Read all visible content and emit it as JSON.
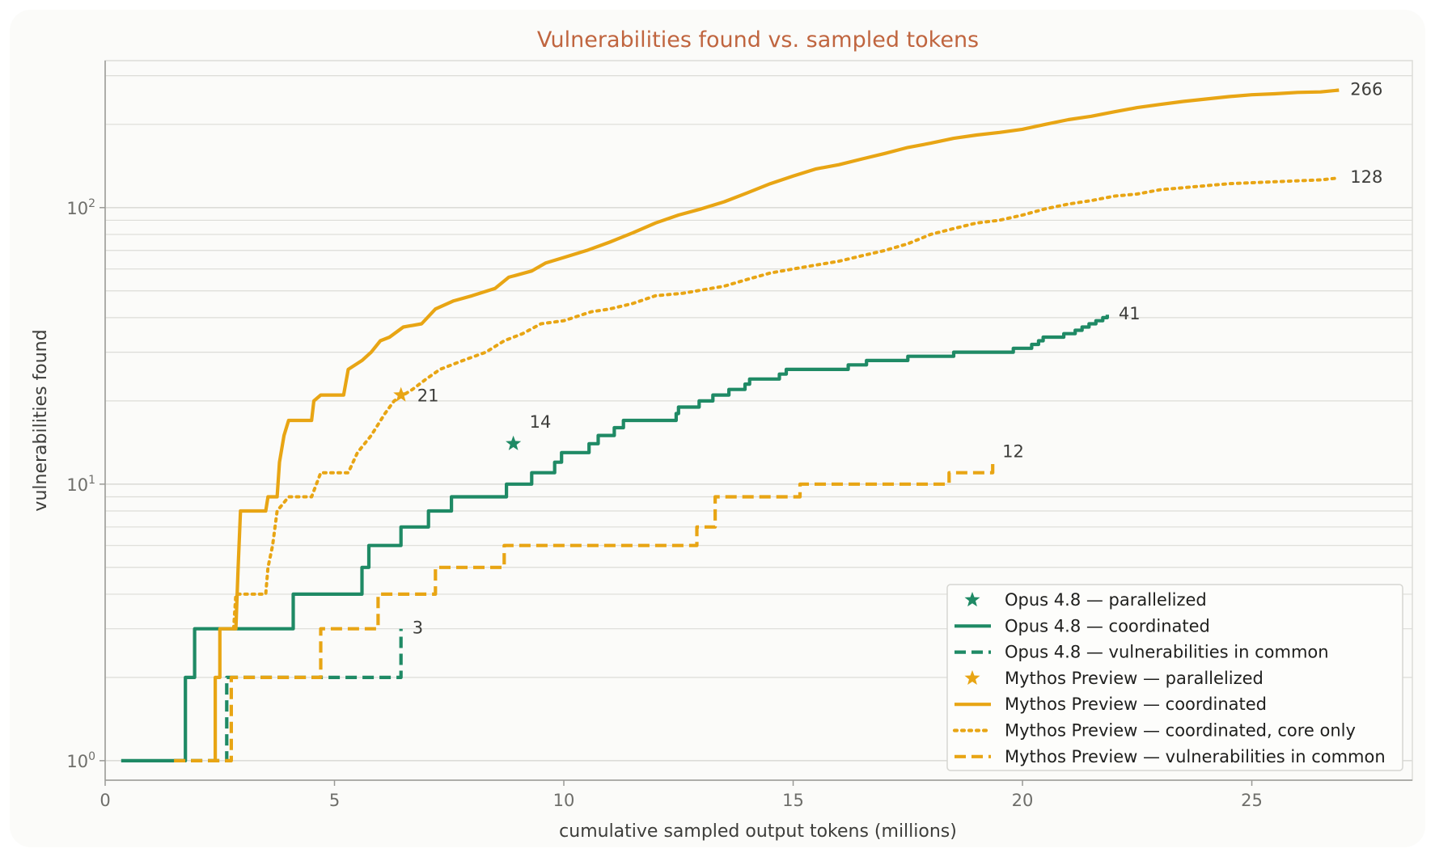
{
  "colors": {
    "opus": "#1f8a65",
    "mythos": "#e8a514",
    "title": "#c0653f",
    "grid": "#dcdcd8",
    "axis": "#9a9a96",
    "background": "#fbfbf9"
  },
  "chart_data": {
    "type": "line",
    "title": "Vulnerabilities found vs. sampled tokens",
    "xlabel": "cumulative sampled output tokens (millions)",
    "ylabel": "vulnerabilities found",
    "xlim": [
      0,
      28.5
    ],
    "ylim": [
      0.85,
      340
    ],
    "yscale": "log",
    "grid": true,
    "legend_position": "bottom-right",
    "x_ticks": [
      {
        "value": 0,
        "label": "0"
      },
      {
        "value": 5,
        "label": "5"
      },
      {
        "value": 10,
        "label": "10"
      },
      {
        "value": 15,
        "label": "15"
      },
      {
        "value": 20,
        "label": "20"
      },
      {
        "value": 25,
        "label": "25"
      }
    ],
    "y_ticks": [
      {
        "value": 1,
        "base": "10",
        "exp": "0"
      },
      {
        "value": 10,
        "base": "10",
        "exp": "1"
      },
      {
        "value": 100,
        "base": "10",
        "exp": "2"
      }
    ],
    "series": [
      {
        "name": "Opus 4.8 — parallelized",
        "color": "opus",
        "style": "star",
        "points": [
          [
            8.9,
            14
          ]
        ],
        "end_label": "14"
      },
      {
        "name": "Opus 4.8 — coordinated",
        "color": "opus",
        "style": "solid",
        "points": [
          [
            0.35,
            1
          ],
          [
            1.75,
            1
          ],
          [
            1.75,
            2
          ],
          [
            1.95,
            2
          ],
          [
            1.95,
            3
          ],
          [
            4.1,
            3
          ],
          [
            4.1,
            4
          ],
          [
            5.6,
            4
          ],
          [
            5.6,
            5
          ],
          [
            5.75,
            5
          ],
          [
            5.75,
            6
          ],
          [
            6.45,
            6
          ],
          [
            6.45,
            7
          ],
          [
            7.05,
            7
          ],
          [
            7.05,
            8
          ],
          [
            7.55,
            8
          ],
          [
            7.55,
            9
          ],
          [
            8.75,
            9
          ],
          [
            8.75,
            10
          ],
          [
            9.3,
            10
          ],
          [
            9.3,
            11
          ],
          [
            9.8,
            11
          ],
          [
            9.8,
            12
          ],
          [
            9.95,
            12
          ],
          [
            9.95,
            13
          ],
          [
            10.55,
            13
          ],
          [
            10.55,
            14
          ],
          [
            10.75,
            14
          ],
          [
            10.75,
            15
          ],
          [
            11.1,
            15
          ],
          [
            11.1,
            16
          ],
          [
            11.3,
            16
          ],
          [
            11.3,
            17
          ],
          [
            12.45,
            17
          ],
          [
            12.45,
            18
          ],
          [
            12.5,
            18
          ],
          [
            12.5,
            19
          ],
          [
            12.95,
            19
          ],
          [
            12.95,
            20
          ],
          [
            13.25,
            20
          ],
          [
            13.25,
            21
          ],
          [
            13.6,
            21
          ],
          [
            13.6,
            22
          ],
          [
            13.95,
            22
          ],
          [
            13.95,
            23
          ],
          [
            14.05,
            23
          ],
          [
            14.05,
            24
          ],
          [
            14.7,
            24
          ],
          [
            14.7,
            25
          ],
          [
            14.85,
            25
          ],
          [
            14.85,
            26
          ],
          [
            16.2,
            26
          ],
          [
            16.2,
            27
          ],
          [
            16.6,
            27
          ],
          [
            16.6,
            28
          ],
          [
            17.5,
            28
          ],
          [
            17.5,
            29
          ],
          [
            18.5,
            29
          ],
          [
            18.5,
            30
          ],
          [
            19.8,
            30
          ],
          [
            19.8,
            31
          ],
          [
            20.2,
            31
          ],
          [
            20.2,
            32
          ],
          [
            20.35,
            32
          ],
          [
            20.35,
            33
          ],
          [
            20.45,
            33
          ],
          [
            20.45,
            34
          ],
          [
            20.9,
            34
          ],
          [
            20.9,
            35
          ],
          [
            21.15,
            35
          ],
          [
            21.15,
            36
          ],
          [
            21.3,
            36
          ],
          [
            21.3,
            37
          ],
          [
            21.45,
            37
          ],
          [
            21.45,
            38
          ],
          [
            21.6,
            38
          ],
          [
            21.6,
            39
          ],
          [
            21.75,
            39
          ],
          [
            21.75,
            40
          ],
          [
            21.85,
            40
          ],
          [
            21.85,
            41
          ]
        ],
        "end_label": "41"
      },
      {
        "name": "Opus 4.8 — vulnerabilities in common",
        "color": "opus",
        "style": "dashed",
        "points": [
          [
            1.5,
            1
          ],
          [
            1.5,
            1
          ],
          [
            2.65,
            1
          ],
          [
            2.65,
            2
          ],
          [
            6.45,
            2
          ],
          [
            6.45,
            3
          ]
        ],
        "end_label": "3"
      },
      {
        "name": "Mythos Preview — parallelized",
        "color": "mythos",
        "style": "star",
        "points": [
          [
            6.45,
            21
          ]
        ],
        "end_label": "21"
      },
      {
        "name": "Mythos Preview — coordinated",
        "color": "mythos",
        "style": "solid",
        "points": [
          [
            2.4,
            1
          ],
          [
            2.4,
            2
          ],
          [
            2.5,
            2
          ],
          [
            2.5,
            3
          ],
          [
            2.85,
            3
          ],
          [
            2.9,
            5
          ],
          [
            2.95,
            8
          ],
          [
            3.5,
            8
          ],
          [
            3.55,
            9
          ],
          [
            3.75,
            9
          ],
          [
            3.8,
            12
          ],
          [
            3.9,
            15
          ],
          [
            4.0,
            17
          ],
          [
            4.5,
            17
          ],
          [
            4.55,
            20
          ],
          [
            4.7,
            21
          ],
          [
            5.2,
            21
          ],
          [
            5.3,
            26
          ],
          [
            5.6,
            28
          ],
          [
            5.8,
            30
          ],
          [
            6.0,
            33
          ],
          [
            6.2,
            34
          ],
          [
            6.5,
            37
          ],
          [
            6.9,
            38
          ],
          [
            7.2,
            43
          ],
          [
            7.6,
            46
          ],
          [
            8.0,
            48
          ],
          [
            8.5,
            51
          ],
          [
            8.8,
            56
          ],
          [
            9.3,
            59
          ],
          [
            9.6,
            63
          ],
          [
            10.0,
            66
          ],
          [
            10.5,
            70
          ],
          [
            11.0,
            75
          ],
          [
            11.5,
            81
          ],
          [
            12.0,
            88
          ],
          [
            12.5,
            94
          ],
          [
            13.0,
            99
          ],
          [
            13.5,
            105
          ],
          [
            14.0,
            113
          ],
          [
            14.5,
            122
          ],
          [
            15.0,
            130
          ],
          [
            15.5,
            138
          ],
          [
            16.0,
            143
          ],
          [
            16.5,
            150
          ],
          [
            17.0,
            157
          ],
          [
            17.5,
            165
          ],
          [
            18.0,
            171
          ],
          [
            18.5,
            178
          ],
          [
            19.0,
            183
          ],
          [
            19.5,
            187
          ],
          [
            20.0,
            192
          ],
          [
            20.5,
            200
          ],
          [
            21.0,
            208
          ],
          [
            21.5,
            214
          ],
          [
            22.0,
            222
          ],
          [
            22.5,
            230
          ],
          [
            23.0,
            236
          ],
          [
            23.5,
            242
          ],
          [
            24.0,
            247
          ],
          [
            24.5,
            252
          ],
          [
            25.0,
            256
          ],
          [
            25.5,
            258
          ],
          [
            26.0,
            261
          ],
          [
            26.5,
            262
          ],
          [
            26.9,
            266
          ]
        ],
        "end_label": "266"
      },
      {
        "name": "Mythos Preview — coordinated, core only",
        "color": "mythos",
        "style": "dotted",
        "points": [
          [
            2.8,
            3
          ],
          [
            2.85,
            4
          ],
          [
            3.5,
            4
          ],
          [
            3.55,
            5
          ],
          [
            3.65,
            6
          ],
          [
            3.75,
            8
          ],
          [
            4.0,
            9
          ],
          [
            4.5,
            9
          ],
          [
            4.7,
            11
          ],
          [
            5.3,
            11
          ],
          [
            5.5,
            13
          ],
          [
            5.8,
            15
          ],
          [
            6.1,
            18
          ],
          [
            6.3,
            20
          ],
          [
            6.5,
            21
          ],
          [
            6.7,
            22
          ],
          [
            7.0,
            24
          ],
          [
            7.3,
            26
          ],
          [
            7.8,
            28
          ],
          [
            8.3,
            30
          ],
          [
            8.7,
            33
          ],
          [
            9.1,
            35
          ],
          [
            9.5,
            38
          ],
          [
            10.0,
            39
          ],
          [
            10.6,
            42
          ],
          [
            11.0,
            43
          ],
          [
            11.5,
            45
          ],
          [
            12.0,
            48
          ],
          [
            12.6,
            49
          ],
          [
            13.5,
            52
          ],
          [
            14.0,
            55
          ],
          [
            14.5,
            58
          ],
          [
            15.0,
            60
          ],
          [
            15.5,
            62
          ],
          [
            16.0,
            64
          ],
          [
            16.5,
            67
          ],
          [
            17.0,
            70
          ],
          [
            17.5,
            74
          ],
          [
            18.0,
            80
          ],
          [
            18.5,
            84
          ],
          [
            19.0,
            88
          ],
          [
            19.5,
            90
          ],
          [
            20.0,
            94
          ],
          [
            20.5,
            99
          ],
          [
            21.0,
            103
          ],
          [
            21.5,
            106
          ],
          [
            22.0,
            110
          ],
          [
            22.5,
            112
          ],
          [
            23.0,
            116
          ],
          [
            23.5,
            118
          ],
          [
            24.0,
            120
          ],
          [
            24.5,
            122
          ],
          [
            25.0,
            123
          ],
          [
            25.5,
            124
          ],
          [
            26.0,
            125
          ],
          [
            26.5,
            126
          ],
          [
            26.9,
            128
          ]
        ],
        "end_label": "128"
      },
      {
        "name": "Mythos Preview — vulnerabilities in common",
        "color": "mythos",
        "style": "dashed",
        "points": [
          [
            1.5,
            1
          ],
          [
            2.75,
            1
          ],
          [
            2.75,
            2
          ],
          [
            4.7,
            2
          ],
          [
            4.7,
            3
          ],
          [
            5.95,
            3
          ],
          [
            5.95,
            4
          ],
          [
            7.2,
            4
          ],
          [
            7.2,
            5
          ],
          [
            8.7,
            5
          ],
          [
            8.7,
            6
          ],
          [
            12.9,
            6
          ],
          [
            12.9,
            7
          ],
          [
            13.3,
            7
          ],
          [
            13.3,
            9
          ],
          [
            15.15,
            9
          ],
          [
            15.15,
            10
          ],
          [
            18.4,
            10
          ],
          [
            18.4,
            11
          ],
          [
            19.35,
            11
          ],
          [
            19.35,
            12
          ]
        ],
        "end_label": "12"
      }
    ]
  }
}
